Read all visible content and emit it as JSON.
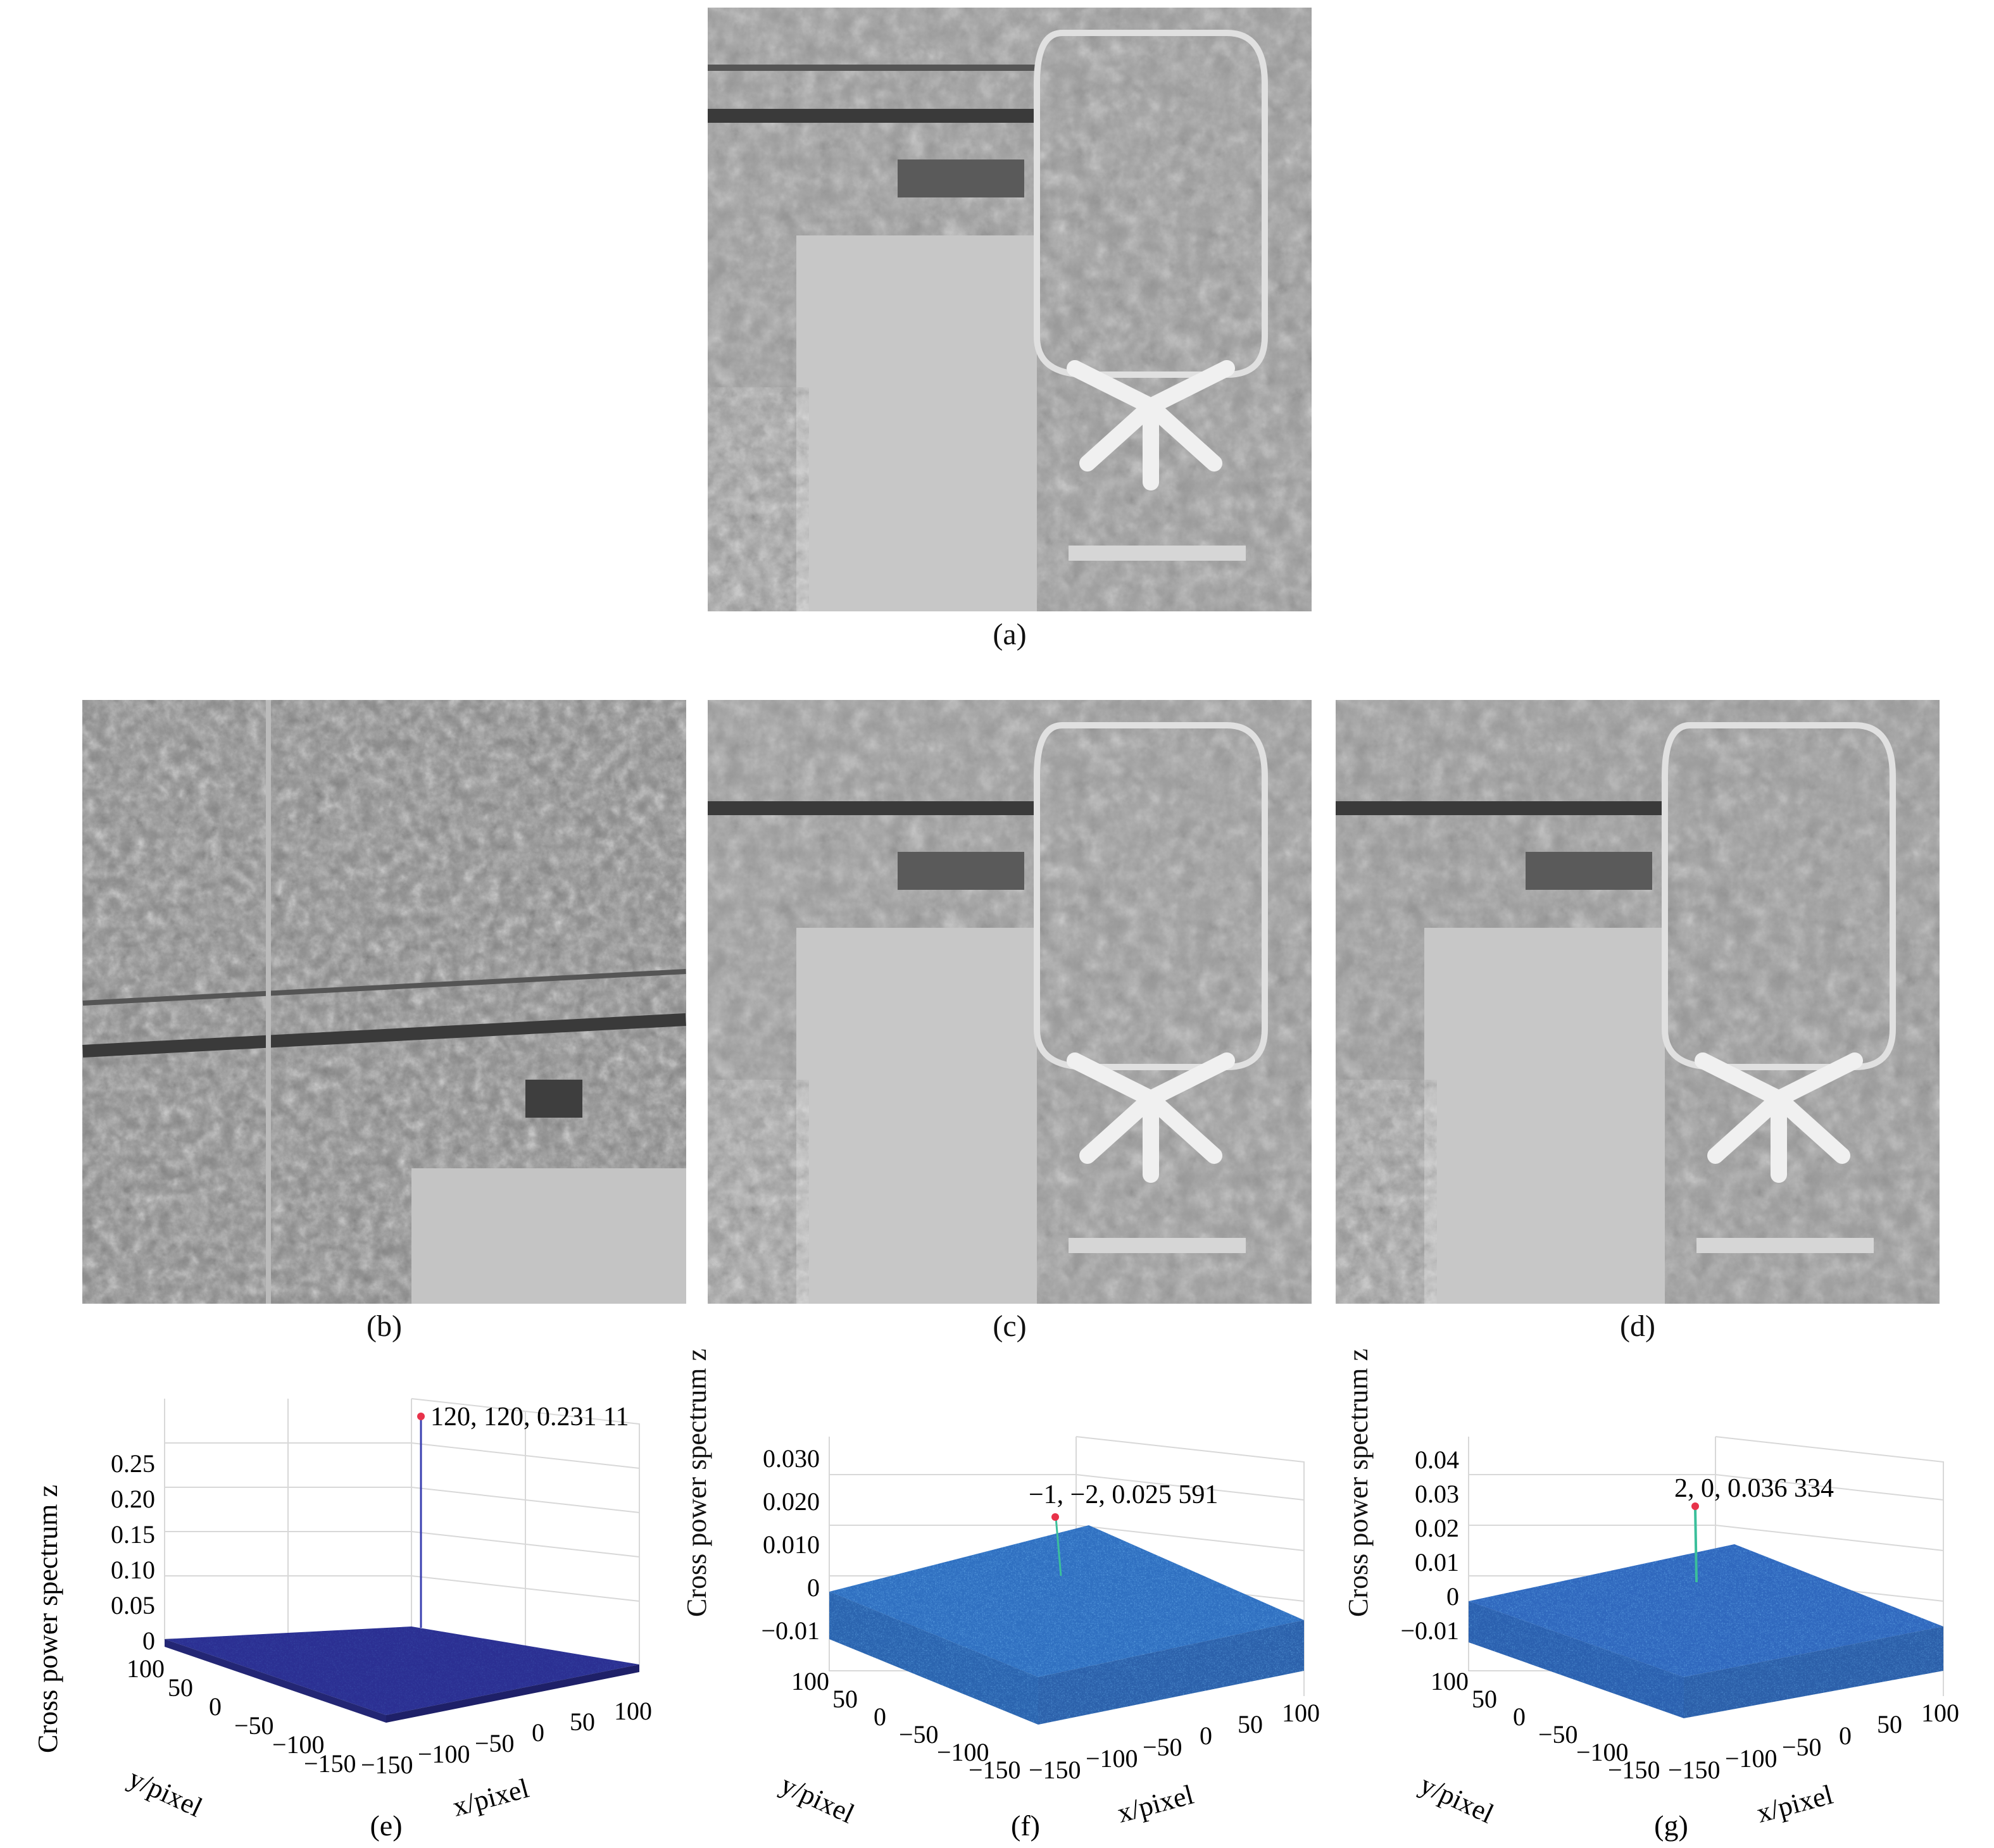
{
  "captions": {
    "a": "(a)",
    "b": "(b)",
    "c": "(c)",
    "d": "(d)",
    "e": "(e)",
    "f": "(f)",
    "g": "(g)"
  },
  "plots": [
    {
      "id": "e",
      "zlabel": "Cross power spectrum z",
      "ylabel": "y/pixel",
      "xlabel": "x/pixel",
      "zticks": [
        "0",
        "0.05",
        "0.10",
        "0.15",
        "0.20",
        "0.25"
      ],
      "yticks": [
        "100",
        "50",
        "0",
        "−50",
        "−100",
        "−150"
      ],
      "xticks": [
        "−150",
        "−100",
        "−50",
        "0",
        "50",
        "100"
      ],
      "peak_label": "120, 120, 0.231 11",
      "surface_color": "#2b2f92"
    },
    {
      "id": "f",
      "zlabel": "Cross power spectrum z",
      "ylabel": "y/pixel",
      "xlabel": "x/pixel",
      "zticks": [
        "−0.01",
        "0",
        "0.010",
        "0.020",
        "0.030"
      ],
      "yticks": [
        "100",
        "50",
        "0",
        "−50",
        "−100",
        "−150"
      ],
      "xticks": [
        "−150",
        "−100",
        "−50",
        "0",
        "50",
        "100"
      ],
      "peak_label": "−1, −2, 0.025 591",
      "surface_color": "#2f6fc0"
    },
    {
      "id": "g",
      "zlabel": "Cross power spectrum z",
      "ylabel": "y/pixel",
      "xlabel": "x/pixel",
      "zticks": [
        "−0.01",
        "0",
        "0.01",
        "0.02",
        "0.03",
        "0.04"
      ],
      "yticks": [
        "100",
        "50",
        "0",
        "−50",
        "−100",
        "−150"
      ],
      "xticks": [
        "−150",
        "−100",
        "−50",
        "0",
        "50",
        "100"
      ],
      "peak_label": "2, 0, 0.036 334",
      "surface_color": "#2f67bd"
    }
  ],
  "colors": {
    "peak_marker": "#e8324a",
    "image_gray": "#8c8c8c"
  }
}
